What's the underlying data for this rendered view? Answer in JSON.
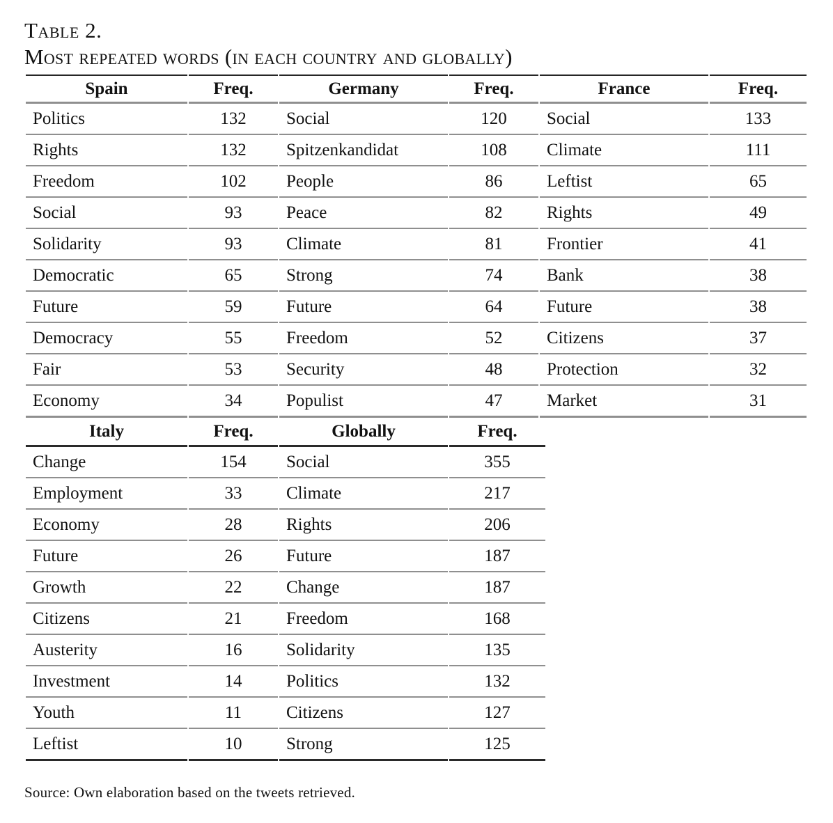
{
  "caption": {
    "number": "Table 2.",
    "title": "Most repeated words (in each country and globally)"
  },
  "freq_label": "Freq.",
  "source_note": "Source: Own elaboration based on the tweets retrieved.",
  "top": [
    {
      "country": "Spain",
      "rows": [
        {
          "word": "Politics",
          "freq": "132"
        },
        {
          "word": "Rights",
          "freq": "132"
        },
        {
          "word": "Freedom",
          "freq": "102"
        },
        {
          "word": "Social",
          "freq": "93"
        },
        {
          "word": "Solidarity",
          "freq": "93"
        },
        {
          "word": "Democratic",
          "freq": "65"
        },
        {
          "word": "Future",
          "freq": "59"
        },
        {
          "word": "Democracy",
          "freq": "55"
        },
        {
          "word": "Fair",
          "freq": "53"
        },
        {
          "word": "Economy",
          "freq": "34"
        }
      ]
    },
    {
      "country": "Germany",
      "rows": [
        {
          "word": "Social",
          "freq": "120"
        },
        {
          "word": "Spitzenkandidat",
          "freq": "108"
        },
        {
          "word": "People",
          "freq": "86"
        },
        {
          "word": "Peace",
          "freq": "82"
        },
        {
          "word": "Climate",
          "freq": "81"
        },
        {
          "word": "Strong",
          "freq": "74"
        },
        {
          "word": "Future",
          "freq": "64"
        },
        {
          "word": "Freedom",
          "freq": "52"
        },
        {
          "word": "Security",
          "freq": "48"
        },
        {
          "word": "Populist",
          "freq": "47"
        }
      ]
    },
    {
      "country": "France",
      "rows": [
        {
          "word": "Social",
          "freq": "133"
        },
        {
          "word": "Climate",
          "freq": "111"
        },
        {
          "word": "Leftist",
          "freq": "65"
        },
        {
          "word": "Rights",
          "freq": "49"
        },
        {
          "word": "Frontier",
          "freq": "41"
        },
        {
          "word": "Bank",
          "freq": "38"
        },
        {
          "word": "Future",
          "freq": "38"
        },
        {
          "word": "Citizens",
          "freq": "37"
        },
        {
          "word": "Protection",
          "freq": "32"
        },
        {
          "word": "Market",
          "freq": "31"
        }
      ]
    }
  ],
  "bottom": [
    {
      "country": "Italy",
      "rows": [
        {
          "word": "Change",
          "freq": "154"
        },
        {
          "word": "Employment",
          "freq": "33"
        },
        {
          "word": "Economy",
          "freq": "28"
        },
        {
          "word": "Future",
          "freq": "26"
        },
        {
          "word": "Growth",
          "freq": "22"
        },
        {
          "word": "Citizens",
          "freq": "21"
        },
        {
          "word": "Austerity",
          "freq": "16"
        },
        {
          "word": "Investment",
          "freq": "14"
        },
        {
          "word": "Youth",
          "freq": "11"
        },
        {
          "word": "Leftist",
          "freq": "10"
        }
      ]
    },
    {
      "country": "Globally",
      "rows": [
        {
          "word": "Social",
          "freq": "355"
        },
        {
          "word": "Climate",
          "freq": "217"
        },
        {
          "word": "Rights",
          "freq": "206"
        },
        {
          "word": "Future",
          "freq": "187"
        },
        {
          "word": "Change",
          "freq": "187"
        },
        {
          "word": "Freedom",
          "freq": "168"
        },
        {
          "word": "Solidarity",
          "freq": "135"
        },
        {
          "word": "Politics",
          "freq": "132"
        },
        {
          "word": "Citizens",
          "freq": "127"
        },
        {
          "word": "Strong",
          "freq": "125"
        }
      ]
    }
  ]
}
